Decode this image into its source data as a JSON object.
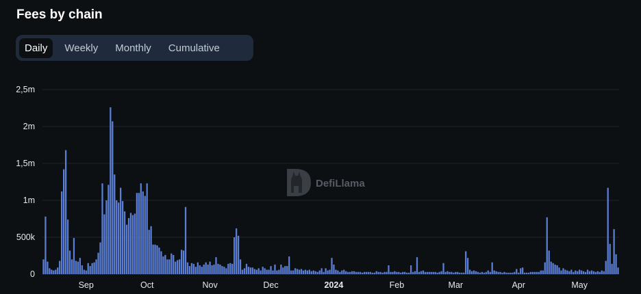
{
  "header": {
    "title": "Fees by chain"
  },
  "tabs": [
    {
      "label": "Daily",
      "active": true
    },
    {
      "label": "Weekly",
      "active": false
    },
    {
      "label": "Monthly",
      "active": false
    },
    {
      "label": "Cumulative",
      "active": false
    }
  ],
  "watermark": {
    "text": "DefiLlama",
    "icon": "llama-logo-icon"
  },
  "colors": {
    "bar": "#5c7fd6",
    "background": "#0d1013",
    "grid": "#1f2429",
    "tabs_bg": "#1f2b3d"
  },
  "chart_data": {
    "type": "bar",
    "title": "Fees by chain",
    "xlabel": "",
    "ylabel": "",
    "ylim": [
      0,
      2500000
    ],
    "grid": true,
    "y_ticks": [
      {
        "value": 0,
        "label": "0"
      },
      {
        "value": 500000,
        "label": "500k"
      },
      {
        "value": 1000000,
        "label": "1m"
      },
      {
        "value": 1500000,
        "label": "1,5m"
      },
      {
        "value": 2000000,
        "label": "2m"
      },
      {
        "value": 2500000,
        "label": "2,5m"
      }
    ],
    "x_ticks": [
      {
        "index": 21,
        "label": "Sep",
        "bold": false
      },
      {
        "index": 51,
        "label": "Oct",
        "bold": false
      },
      {
        "index": 82,
        "label": "Nov",
        "bold": false
      },
      {
        "index": 112,
        "label": "Dec",
        "bold": false
      },
      {
        "index": 143,
        "label": "2024",
        "bold": true
      },
      {
        "index": 174,
        "label": "Feb",
        "bold": false
      },
      {
        "index": 203,
        "label": "Mar",
        "bold": false
      },
      {
        "index": 234,
        "label": "Apr",
        "bold": false
      },
      {
        "index": 264,
        "label": "May",
        "bold": false
      }
    ],
    "values": [
      200000,
      780000,
      170000,
      80000,
      60000,
      50000,
      60000,
      90000,
      180000,
      1120000,
      1420000,
      1680000,
      740000,
      320000,
      200000,
      490000,
      180000,
      170000,
      220000,
      120000,
      60000,
      50000,
      150000,
      110000,
      150000,
      160000,
      200000,
      290000,
      430000,
      1230000,
      810000,
      1000000,
      1210000,
      2260000,
      2070000,
      1350000,
      1000000,
      970000,
      1170000,
      990000,
      850000,
      670000,
      760000,
      830000,
      800000,
      820000,
      1100000,
      1100000,
      1230000,
      1120000,
      1060000,
      1230000,
      600000,
      650000,
      400000,
      400000,
      390000,
      360000,
      310000,
      240000,
      260000,
      200000,
      200000,
      280000,
      260000,
      170000,
      190000,
      200000,
      330000,
      320000,
      910000,
      160000,
      110000,
      150000,
      140000,
      100000,
      160000,
      120000,
      100000,
      130000,
      160000,
      130000,
      170000,
      120000,
      130000,
      230000,
      140000,
      130000,
      110000,
      100000,
      80000,
      140000,
      150000,
      140000,
      500000,
      620000,
      520000,
      200000,
      60000,
      80000,
      140000,
      100000,
      90000,
      90000,
      70000,
      60000,
      80000,
      50000,
      100000,
      80000,
      60000,
      60000,
      110000,
      50000,
      130000,
      50000,
      60000,
      130000,
      90000,
      110000,
      110000,
      240000,
      50000,
      50000,
      80000,
      70000,
      60000,
      70000,
      50000,
      60000,
      50000,
      60000,
      40000,
      50000,
      40000,
      30000,
      50000,
      80000,
      30000,
      80000,
      50000,
      60000,
      220000,
      130000,
      60000,
      50000,
      30000,
      50000,
      60000,
      40000,
      30000,
      30000,
      40000,
      40000,
      30000,
      30000,
      30000,
      20000,
      30000,
      30000,
      30000,
      30000,
      20000,
      20000,
      40000,
      30000,
      30000,
      20000,
      30000,
      30000,
      120000,
      30000,
      30000,
      40000,
      30000,
      30000,
      20000,
      30000,
      30000,
      20000,
      20000,
      120000,
      30000,
      40000,
      230000,
      30000,
      40000,
      50000,
      30000,
      30000,
      30000,
      30000,
      30000,
      30000,
      20000,
      30000,
      40000,
      150000,
      30000,
      40000,
      30000,
      30000,
      20000,
      30000,
      30000,
      20000,
      20000,
      20000,
      310000,
      220000,
      60000,
      40000,
      50000,
      40000,
      30000,
      20000,
      30000,
      20000,
      30000,
      50000,
      30000,
      160000,
      50000,
      40000,
      30000,
      30000,
      20000,
      30000,
      20000,
      20000,
      20000,
      20000,
      30000,
      70000,
      20000,
      80000,
      90000,
      20000,
      20000,
      20000,
      30000,
      30000,
      30000,
      30000,
      30000,
      50000,
      50000,
      160000,
      770000,
      320000,
      170000,
      150000,
      130000,
      120000,
      90000,
      50000,
      80000,
      60000,
      50000,
      40000,
      60000,
      30000,
      50000,
      40000,
      60000,
      50000,
      40000,
      30000,
      60000,
      40000,
      50000,
      40000,
      30000,
      40000,
      30000,
      50000,
      40000,
      180000,
      1170000,
      410000,
      140000,
      610000,
      270000,
      90000
    ]
  }
}
